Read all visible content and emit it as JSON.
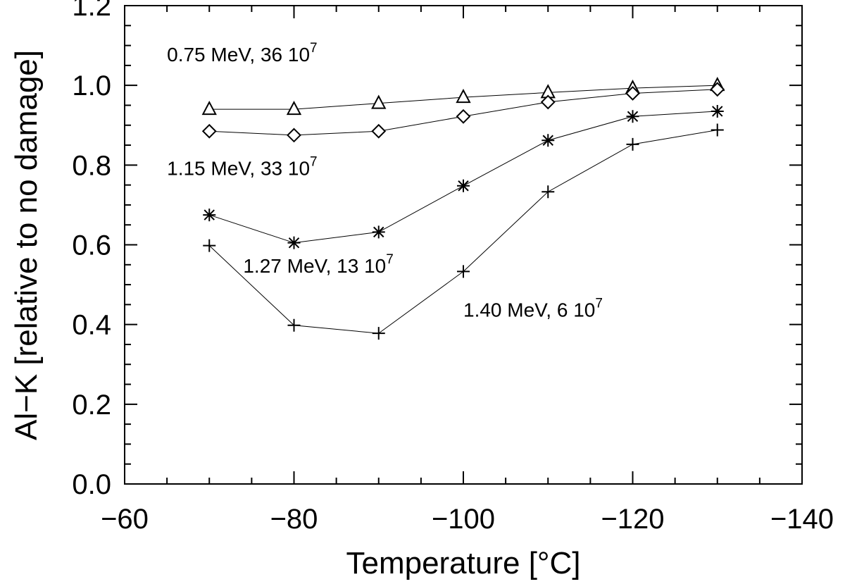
{
  "chart_data": {
    "type": "line",
    "title": "",
    "xlabel": "Temperature [°C]",
    "ylabel": "Al−K [relative to no damage]",
    "xlim": [
      -60,
      -140
    ],
    "ylim": [
      0.0,
      1.2
    ],
    "x_ticks": [
      -60,
      -80,
      -100,
      -120,
      -140
    ],
    "x_tick_labels": [
      "−60",
      "−80",
      "−100",
      "−120",
      "−140"
    ],
    "y_ticks": [
      0.0,
      0.2,
      0.4,
      0.6,
      0.8,
      1.0,
      1.2
    ],
    "y_tick_labels": [
      "0.0",
      "0.2",
      "0.4",
      "0.6",
      "0.8",
      "1.0",
      "1.2"
    ],
    "grid": false,
    "legend": "none",
    "x": [
      -70,
      -80,
      -90,
      -100,
      -110,
      -120,
      -130
    ],
    "series": [
      {
        "marker": "triangle",
        "values": [
          0.94,
          0.94,
          0.955,
          0.97,
          0.982,
          0.993,
          1.0
        ]
      },
      {
        "marker": "diamond",
        "values": [
          0.885,
          0.875,
          0.885,
          0.922,
          0.958,
          0.98,
          0.99
        ]
      },
      {
        "marker": "asterisk",
        "values": [
          0.675,
          0.605,
          0.632,
          0.748,
          0.862,
          0.922,
          0.935
        ]
      },
      {
        "marker": "plus",
        "values": [
          0.598,
          0.398,
          0.378,
          0.533,
          0.733,
          0.852,
          0.888
        ]
      }
    ],
    "annotations": [
      {
        "text": "0.75 MeV, 36 10",
        "sup": "7",
        "x": -65,
        "y": 1.06
      },
      {
        "text": "1.15 MeV, 33 10",
        "sup": "7",
        "x": -65,
        "y": 0.775
      },
      {
        "text": "1.27 MeV, 13 10",
        "sup": "7",
        "x": -74,
        "y": 0.53
      },
      {
        "text": "1.40 MeV, 6 10",
        "sup": "7",
        "x": -100,
        "y": 0.42
      }
    ]
  }
}
